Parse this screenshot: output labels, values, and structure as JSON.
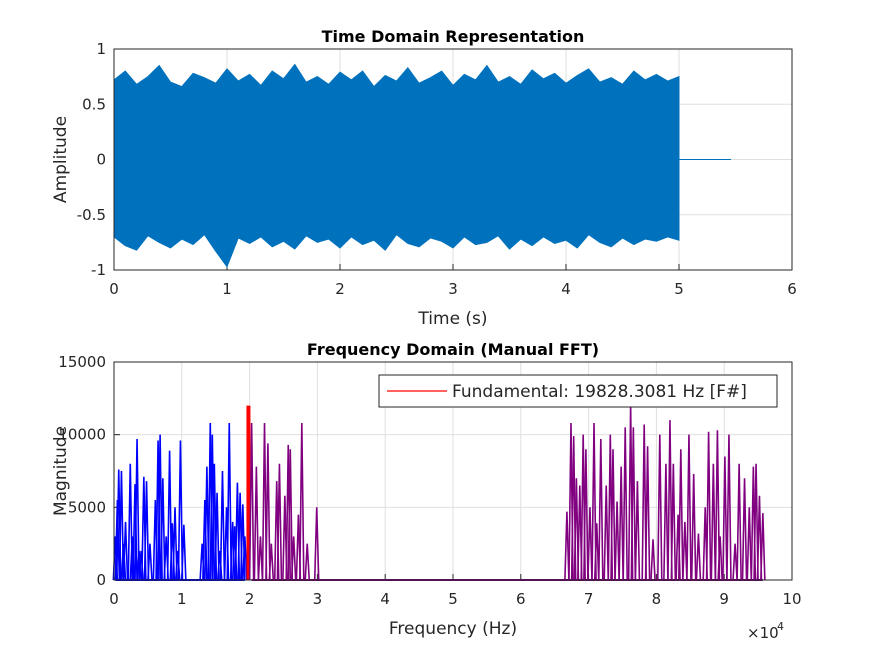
{
  "chart_data": [
    {
      "type": "line",
      "title": "Time Domain Representation",
      "xlabel": "Time (s)",
      "ylabel": "Amplitude",
      "xlim": [
        0,
        6
      ],
      "xticks": [
        0,
        1,
        2,
        3,
        4,
        5,
        6
      ],
      "ylim": [
        -1,
        1
      ],
      "yticks": [
        -1,
        -0.5,
        0,
        0.5,
        1
      ],
      "grid": true,
      "series": [
        {
          "color": "#0072bd",
          "x": [
            0,
            0.1,
            0.2,
            0.3,
            0.4,
            0.5,
            0.6,
            0.7,
            0.8,
            0.9,
            1,
            1.1,
            1.2,
            1.3,
            1.4,
            1.5,
            1.6,
            1.7,
            1.8,
            1.9,
            2,
            2.1,
            2.2,
            2.3,
            2.4,
            2.5,
            2.6,
            2.7,
            2.8,
            2.9,
            3,
            3.1,
            3.2,
            3.3,
            3.4,
            3.5,
            3.6,
            3.7,
            3.8,
            3.9,
            4,
            4.1,
            4.2,
            4.3,
            4.4,
            4.5,
            4.6,
            4.7,
            4.8,
            4.9,
            5
          ],
          "upper": [
            0.72,
            0.8,
            0.68,
            0.75,
            0.85,
            0.7,
            0.66,
            0.78,
            0.74,
            0.69,
            0.82,
            0.71,
            0.77,
            0.67,
            0.8,
            0.73,
            0.86,
            0.7,
            0.75,
            0.68,
            0.79,
            0.72,
            0.8,
            0.66,
            0.76,
            0.71,
            0.83,
            0.69,
            0.74,
            0.8,
            0.67,
            0.77,
            0.72,
            0.85,
            0.7,
            0.75,
            0.68,
            0.81,
            0.73,
            0.78,
            0.69,
            0.76,
            0.82,
            0.7,
            0.74,
            0.68,
            0.8,
            0.72,
            0.77,
            0.71,
            0.75
          ],
          "lower": [
            -0.7,
            -0.78,
            -0.82,
            -0.69,
            -0.75,
            -0.8,
            -0.72,
            -0.77,
            -0.68,
            -0.83,
            -0.97,
            -0.71,
            -0.76,
            -0.7,
            -0.79,
            -0.74,
            -0.81,
            -0.69,
            -0.75,
            -0.72,
            -0.8,
            -0.7,
            -0.77,
            -0.73,
            -0.82,
            -0.68,
            -0.76,
            -0.79,
            -0.71,
            -0.74,
            -0.8,
            -0.7,
            -0.77,
            -0.75,
            -0.69,
            -0.81,
            -0.72,
            -0.78,
            -0.7,
            -0.76,
            -0.73,
            -0.8,
            -0.68,
            -0.75,
            -0.79,
            -0.71,
            -0.77,
            -0.72,
            -0.74,
            -0.7,
            -0.73
          ]
        },
        {
          "color": "#0072bd",
          "x": [
            5,
            5.46
          ],
          "values": [
            0,
            0
          ]
        }
      ]
    },
    {
      "type": "stem",
      "title": "Frequency Domain (Manual FFT)",
      "xlabel": "Frequency (Hz)",
      "ylabel": "Magnitude",
      "xlim": [
        0,
        100000
      ],
      "xticks": [
        {
          "value": 0,
          "label": "0"
        },
        {
          "value": 10000,
          "label": "1"
        },
        {
          "value": 20000,
          "label": "2"
        },
        {
          "value": 30000,
          "label": "3"
        },
        {
          "value": 40000,
          "label": "4"
        },
        {
          "value": 50000,
          "label": "5"
        },
        {
          "value": 60000,
          "label": "6"
        },
        {
          "value": 70000,
          "label": "7"
        },
        {
          "value": 80000,
          "label": "8"
        },
        {
          "value": 90000,
          "label": "9"
        },
        {
          "value": 100000,
          "label": "10"
        }
      ],
      "x_exponent": {
        "base": "×10",
        "power": "4"
      },
      "ylim": [
        0,
        15000
      ],
      "yticks": [
        0,
        5000,
        10000,
        15000
      ],
      "grid": true,
      "legend_location": "northeast",
      "series": [
        {
          "color": "#0000ff",
          "x": [
            200,
            500,
            700,
            1100,
            1400,
            1700,
            2400,
            2700,
            3100,
            3400,
            3700,
            4000,
            4400,
            4800,
            5300,
            6100,
            6500,
            6800,
            7200,
            7700,
            8200,
            8600,
            9000,
            9400,
            9800,
            10300,
            13000,
            13400,
            13700,
            14200,
            14500,
            14800,
            15200,
            15600,
            16000,
            16600,
            17000,
            17500,
            17800,
            18200,
            18600,
            19000,
            19300
          ],
          "values": [
            3000,
            5500,
            7600,
            7500,
            2500,
            4000,
            8000,
            3000,
            6600,
            9700,
            2000,
            2000,
            7100,
            6800,
            2500,
            5500,
            9600,
            10000,
            7000,
            3000,
            8900,
            3900,
            5000,
            2000,
            9600,
            3800,
            2500,
            5500,
            7800,
            10800,
            10000,
            8000,
            6000,
            2000,
            7500,
            5000,
            10800,
            4000,
            3700,
            6700,
            6000,
            5200,
            3000
          ]
        },
        {
          "name": "Fundamental: 19828.3081 Hz [F#]",
          "color": "#ff0000",
          "x": [
            19828.3081
          ],
          "values": [
            12000
          ]
        },
        {
          "color": "#800080",
          "x": [
            20300,
            21000,
            21600,
            22200,
            22700,
            23200,
            24000,
            24400,
            25200,
            25700,
            26000,
            26500,
            27200,
            27700,
            28500,
            29900,
            66800,
            67400,
            67800,
            68200,
            68700,
            69200,
            69600,
            70200,
            70800,
            71200,
            71800,
            72600,
            73200,
            73600,
            74200,
            74800,
            75400,
            76200,
            76600,
            77200,
            78200,
            78700,
            79500,
            80500,
            81400,
            82000,
            82500,
            83200,
            83600,
            84200,
            84800,
            85500,
            86200,
            87200,
            87700,
            88400,
            89000,
            89400,
            90100,
            90700,
            91600,
            92200,
            93000,
            93700,
            94300,
            94700,
            95200,
            95700
          ],
          "values": [
            10800,
            7800,
            3000,
            10800,
            9400,
            2500,
            6800,
            8000,
            5800,
            9300,
            9000,
            3000,
            4500,
            10800,
            2500,
            5000,
            4700,
            10800,
            9900,
            7000,
            6500,
            10000,
            9000,
            5000,
            10800,
            3900,
            9700,
            6500,
            10000,
            9000,
            5400,
            7800,
            10500,
            12000,
            10500,
            6800,
            10700,
            9200,
            2800,
            10000,
            8000,
            11000,
            8000,
            4500,
            9000,
            4000,
            10000,
            7300,
            3200,
            5000,
            10200,
            8000,
            10300,
            3000,
            8500,
            10000,
            2500,
            8000,
            7000,
            5000,
            7800,
            8000,
            5800,
            4600
          ]
        }
      ]
    }
  ]
}
